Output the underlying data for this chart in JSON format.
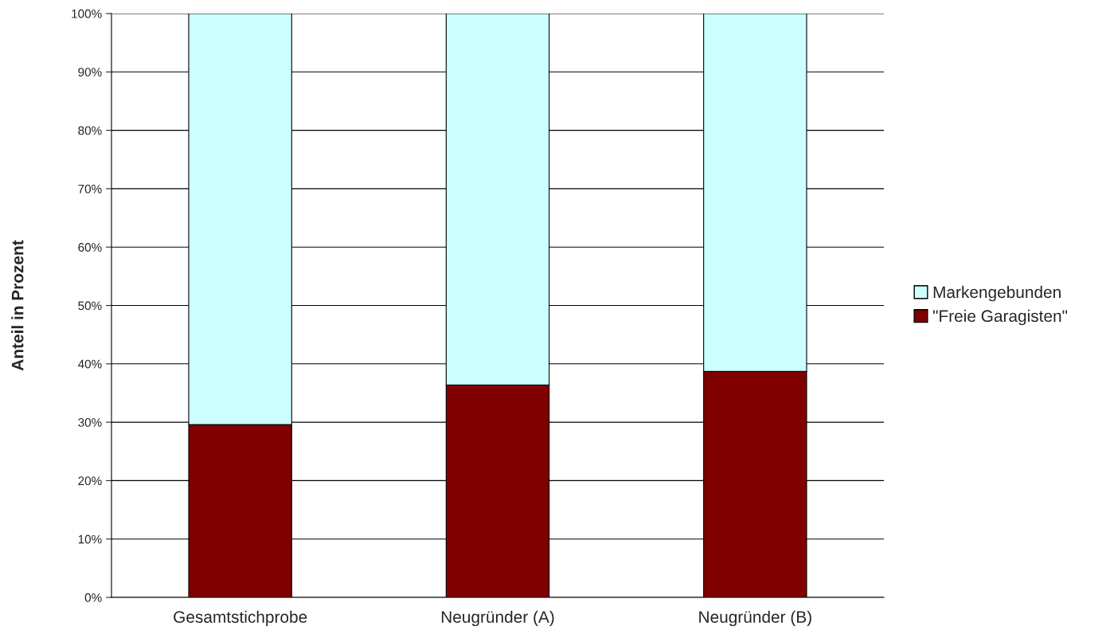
{
  "chart_data": {
    "type": "bar",
    "stacked": true,
    "ylabel": "Anteil in Prozent",
    "categories": [
      "Gesamtstichprobe",
      "Neugründer (A)",
      "Neugründer (B)"
    ],
    "series": [
      {
        "name": "\"Freie Garagisten\"",
        "color": "#800000",
        "values": [
          29.6,
          36.4,
          38.7
        ]
      },
      {
        "name": "Markengebunden",
        "color": "#ccffff",
        "values": [
          70.4,
          63.6,
          61.3
        ]
      }
    ],
    "ylim": [
      0,
      100
    ],
    "yticks": [
      {
        "value": 0,
        "label": "0%"
      },
      {
        "value": 10,
        "label": "10%"
      },
      {
        "value": 20,
        "label": "20%"
      },
      {
        "value": 30,
        "label": "30%"
      },
      {
        "value": 40,
        "label": "40%"
      },
      {
        "value": 50,
        "label": "50%"
      },
      {
        "value": 60,
        "label": "60%"
      },
      {
        "value": 70,
        "label": "70%"
      },
      {
        "value": 80,
        "label": "80%"
      },
      {
        "value": 90,
        "label": "90%"
      },
      {
        "value": 100,
        "label": "100%"
      }
    ],
    "grid": "y",
    "legend": "right"
  }
}
